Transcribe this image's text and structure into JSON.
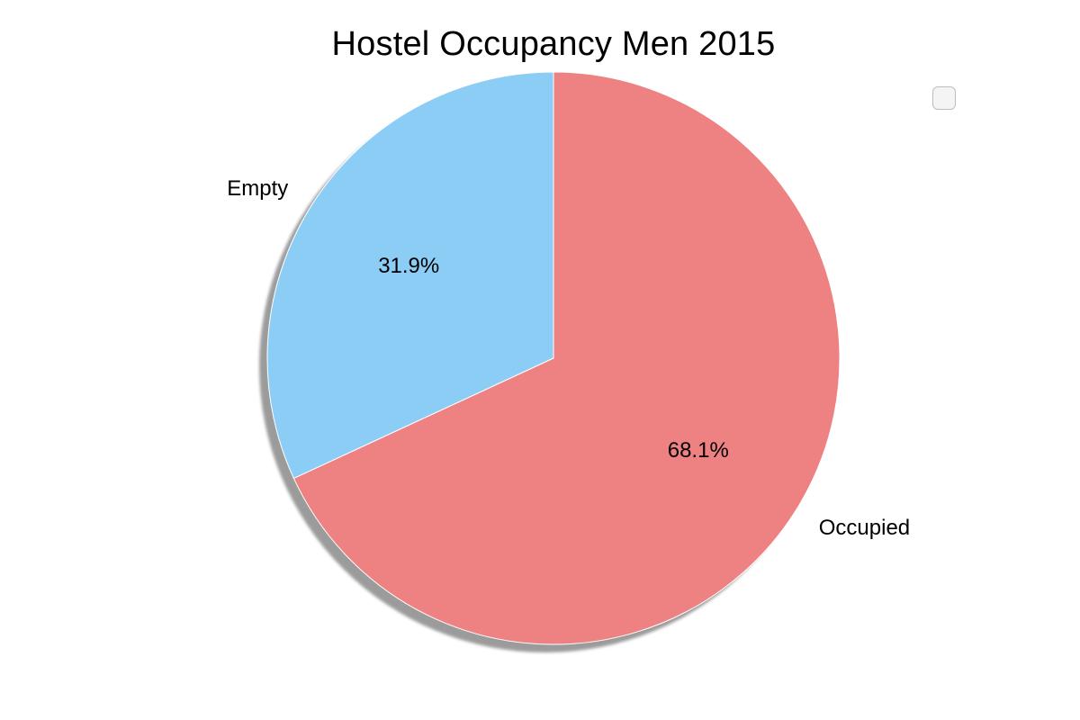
{
  "chart_data": {
    "type": "pie",
    "title": "Hostel Occupancy Men 2015",
    "slices": [
      {
        "label": "Empty",
        "value": 31.9,
        "pct_label": "31.9%",
        "color": "#8ccdf6"
      },
      {
        "label": "Occupied",
        "value": 68.1,
        "pct_label": "68.1%",
        "color": "#ee8181"
      }
    ],
    "start_angle_deg": 90,
    "direction": "counterclockwise",
    "shadow": true,
    "legend": {
      "placement": "top-right",
      "entries": []
    }
  }
}
